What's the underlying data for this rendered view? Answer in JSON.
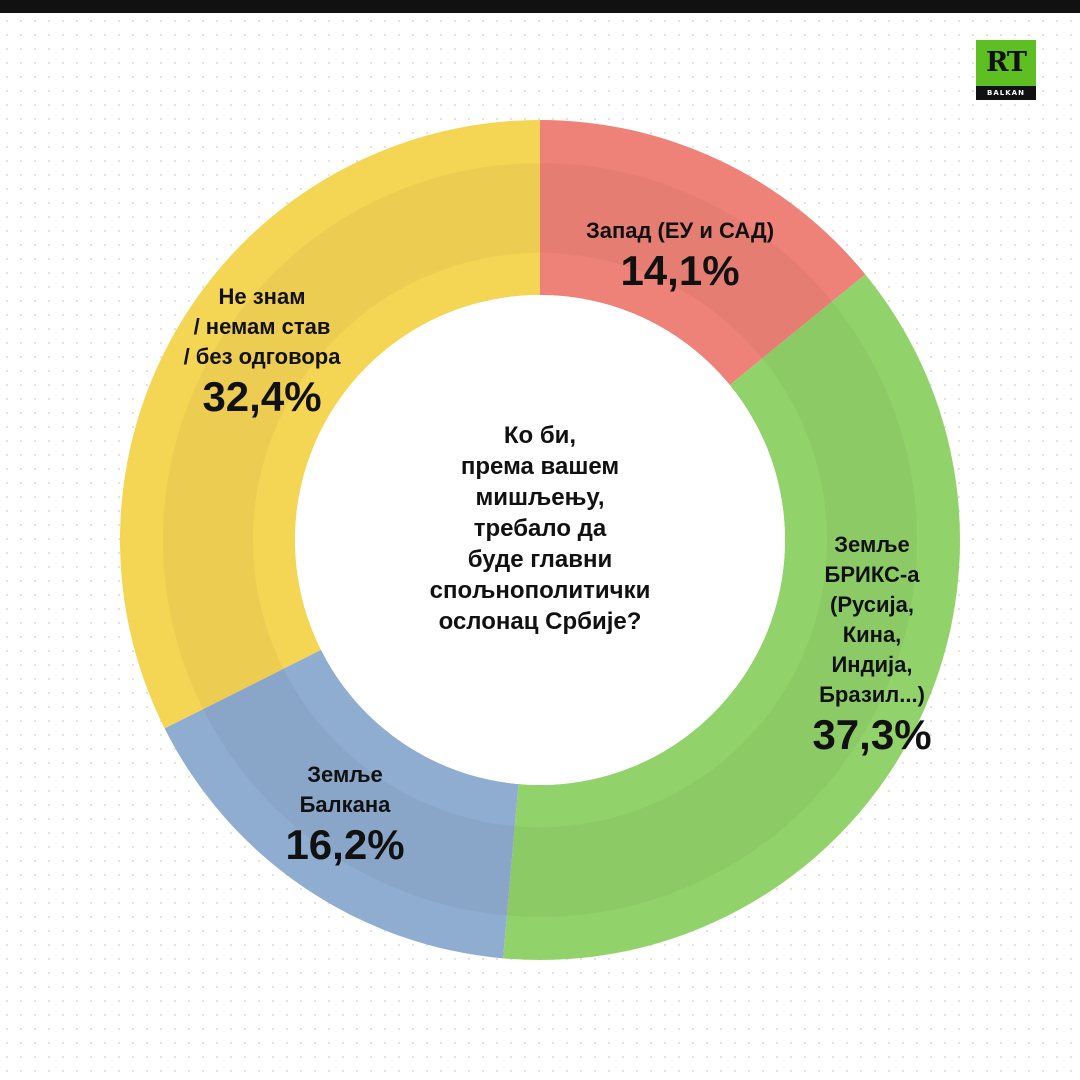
{
  "logo": {
    "text": "RT",
    "subtext": "BALKAN"
  },
  "chart_data": {
    "type": "pie",
    "variant": "donut",
    "center_text": "Ко би,\nпрема вашем\nмишљењу,\nтребало да\nбуде главни\nспољнополитички\nослонац Србије?",
    "slices": [
      {
        "label": "Запад (ЕУ и САД)",
        "value": 14.1,
        "value_label": "14,1%",
        "color": "#ee8278"
      },
      {
        "label": "Земље\nБРИКС-а\n(Русија,\nКина,\nИндија,\nБразил...)",
        "value": 37.3,
        "value_label": "37,3%",
        "color": "#92d26a"
      },
      {
        "label": "Земље\nБалкана",
        "value": 16.2,
        "value_label": "16,2%",
        "color": "#8fadd0"
      },
      {
        "label": "Не знам\n/ немам став\n/ без одговора",
        "value": 32.4,
        "value_label": "32,4%",
        "color": "#f5d554"
      }
    ],
    "start_angle_deg": 0,
    "direction": "clockwise"
  }
}
